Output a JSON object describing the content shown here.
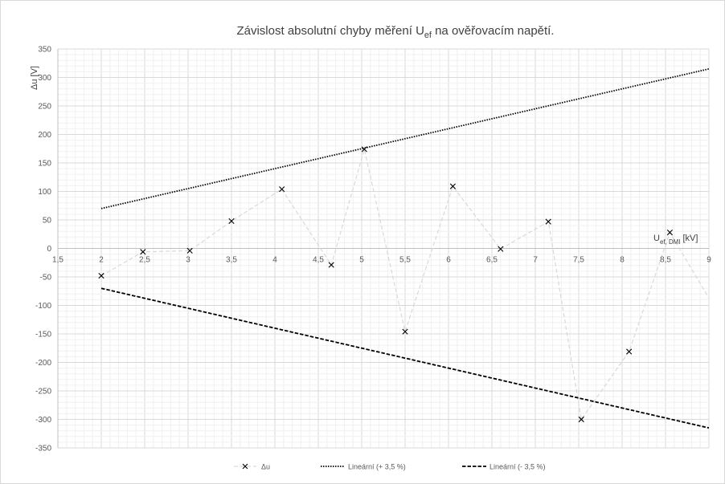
{
  "chart_data": {
    "type": "scatter",
    "title": {
      "main": "Závislost absolutní chyby měření U",
      "sub": "ef",
      "end": " na ověřovacím napětí."
    },
    "ylabel": "Δu [V]",
    "xlabel": {
      "main": "U",
      "sub": "ef, DMI",
      "end": " [kV]"
    },
    "xlim": [
      1.5,
      9
    ],
    "ylim": [
      -350,
      350
    ],
    "x_ticks": [
      "1,5",
      "2",
      "2,5",
      "3",
      "3,5",
      "4",
      "4,5",
      "5",
      "5,5",
      "6",
      "6,5",
      "7",
      "7,5",
      "8",
      "8,5",
      "9"
    ],
    "y_ticks": [
      "350",
      "300",
      "250",
      "200",
      "150",
      "100",
      "50",
      "0",
      "-50",
      "-100",
      "-150",
      "-200",
      "-250",
      "-300",
      "-350"
    ],
    "grid": true,
    "legend_position": "bottom",
    "series": [
      {
        "name": "Δu",
        "kind": "scatter-connected",
        "color": "#d9d9d9",
        "marker_color": "#000000",
        "points": [
          [
            2.0,
            -48
          ],
          [
            2.48,
            -6
          ],
          [
            3.02,
            -4
          ],
          [
            3.5,
            48
          ],
          [
            4.08,
            104
          ],
          [
            4.65,
            -29
          ],
          [
            5.03,
            174
          ],
          [
            5.5,
            -146
          ],
          [
            6.05,
            109
          ],
          [
            6.6,
            -1
          ],
          [
            7.15,
            47
          ],
          [
            7.53,
            -300
          ],
          [
            8.08,
            -181
          ],
          [
            8.55,
            28
          ],
          [
            9.05,
            -100
          ]
        ]
      },
      {
        "name": "Lineární (+ 3,5 %)",
        "kind": "trendline",
        "style": "dotted",
        "color": "#000000",
        "points": [
          [
            2.0,
            70
          ],
          [
            9.0,
            315
          ]
        ]
      },
      {
        "name": "Lineární (- 3,5 %)",
        "kind": "trendline",
        "style": "dashed",
        "color": "#000000",
        "points": [
          [
            2.0,
            -70
          ],
          [
            9.0,
            -315
          ]
        ]
      }
    ]
  }
}
